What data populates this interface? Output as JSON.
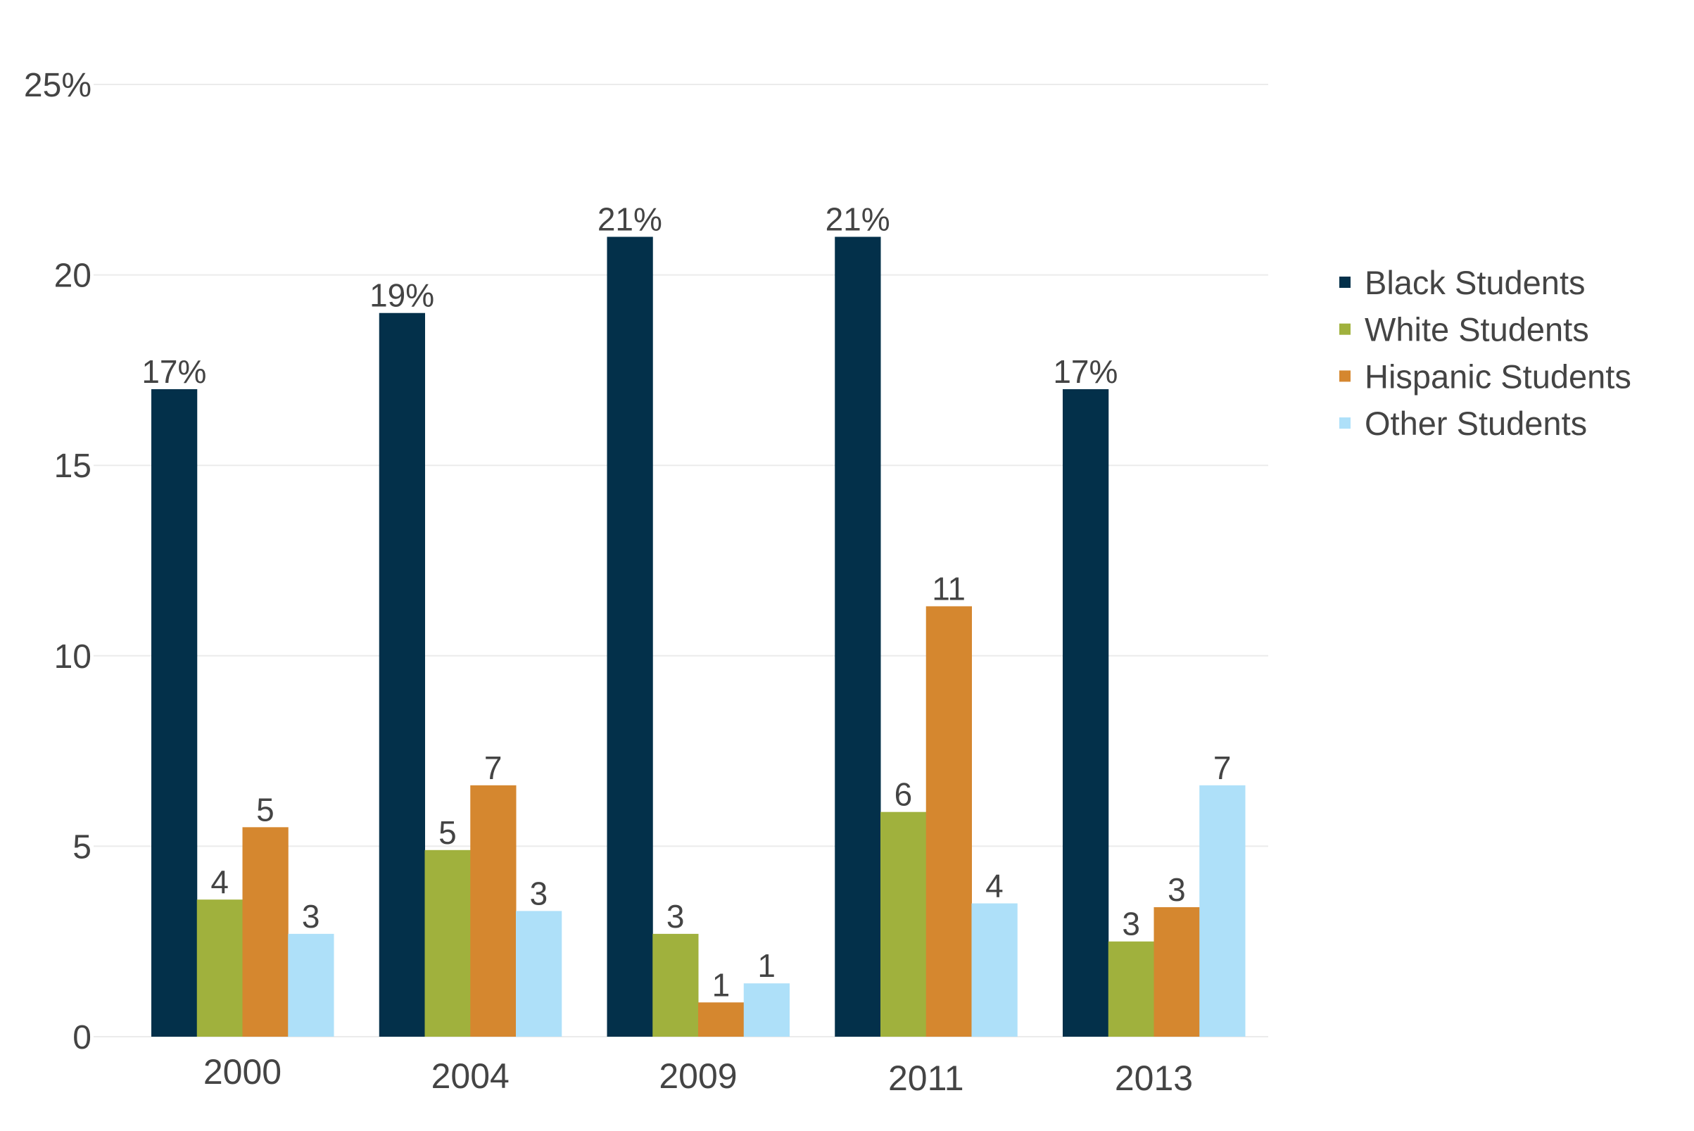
{
  "chart_data": {
    "type": "bar",
    "title": "",
    "xlabel": "",
    "ylabel": "",
    "ylim": [
      0,
      25
    ],
    "yticks": [
      0,
      5,
      10,
      15,
      20,
      25
    ],
    "ytick_labels": [
      "0",
      "5",
      "10",
      "15",
      "20",
      "25%"
    ],
    "grid": true,
    "legend_position": "right",
    "categories": [
      "2000",
      "2004",
      "2009",
      "2011",
      "2013"
    ],
    "series": [
      {
        "name": "Black Students",
        "color": "#03304a",
        "values": [
          17,
          19,
          21,
          21,
          17
        ],
        "labels": [
          "17%",
          "19%",
          "21%",
          "21%",
          "17%"
        ]
      },
      {
        "name": "White Students",
        "color": "#a0b13d",
        "values": [
          3.6,
          4.9,
          2.7,
          5.9,
          2.5
        ],
        "labels": [
          "4",
          "5",
          "3",
          "6",
          "3"
        ]
      },
      {
        "name": "Hispanic Students",
        "color": "#d5872f",
        "values": [
          5.5,
          6.6,
          0.9,
          11.3,
          3.4
        ],
        "labels": [
          "5",
          "7",
          "1",
          "11",
          "3"
        ]
      },
      {
        "name": "Other Students",
        "color": "#aee0f9",
        "values": [
          2.7,
          3.3,
          1.4,
          3.5,
          6.6
        ],
        "labels": [
          "3",
          "3",
          "1",
          "4",
          "7"
        ]
      }
    ]
  }
}
